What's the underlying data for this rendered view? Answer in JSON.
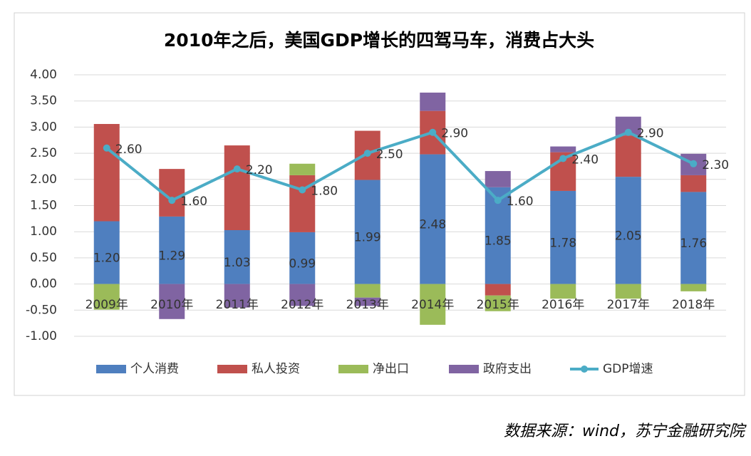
{
  "chart_data": {
    "type": "bar",
    "title": "2010年之后，美国GDP增长的四驾马车，消费占大头",
    "categories": [
      "2009年",
      "2010年",
      "2011年",
      "2012年",
      "2013年",
      "2014年",
      "2015年",
      "2016年",
      "2017年",
      "2018年"
    ],
    "series": [
      {
        "name": "个人消费",
        "type": "bar",
        "color": "#4f7fbf",
        "values": [
          1.2,
          1.29,
          1.03,
          0.99,
          1.99,
          2.48,
          1.85,
          1.78,
          2.05,
          1.76
        ],
        "value_labels": [
          "1.20",
          "1.29",
          "1.03",
          "0.99",
          "1.99",
          "2.48",
          "1.85",
          "1.78",
          "2.05",
          "1.76"
        ]
      },
      {
        "name": "私人投资",
        "type": "bar",
        "color": "#c0504d",
        "values": [
          1.86,
          0.91,
          1.62,
          1.09,
          0.94,
          0.83,
          -0.22,
          0.74,
          0.79,
          0.32
        ]
      },
      {
        "name": "净出口",
        "type": "bar",
        "color": "#9bbb59",
        "values": [
          -0.49,
          0,
          0,
          0.22,
          -0.26,
          -0.78,
          -0.3,
          -0.28,
          -0.28,
          -0.14
        ]
      },
      {
        "name": "政府支出",
        "type": "bar",
        "color": "#8064a2",
        "values": [
          0,
          -0.67,
          -0.45,
          -0.42,
          -0.16,
          0.35,
          0.31,
          0.11,
          0.36,
          0.41
        ]
      },
      {
        "name": "GDP增速",
        "type": "line",
        "color": "#4bacc6",
        "values": [
          2.6,
          1.6,
          2.2,
          1.8,
          2.5,
          2.9,
          1.6,
          2.4,
          2.9,
          2.3
        ],
        "value_labels": [
          "2.60",
          "1.60",
          "2.20",
          "1.80",
          "2.50",
          "2.90",
          "1.60",
          "2.40",
          "2.90",
          "2.30"
        ]
      }
    ],
    "ylim": [
      -1,
      4
    ],
    "yticks": [
      {
        "value": -1,
        "label": "-1.00"
      },
      {
        "value": -0.5,
        "label": "-0.50"
      },
      {
        "value": 0,
        "label": "0.00"
      },
      {
        "value": 0.5,
        "label": "0.50"
      },
      {
        "value": 1,
        "label": "1.00"
      },
      {
        "value": 1.5,
        "label": "1.50"
      },
      {
        "value": 2,
        "label": "2.00"
      },
      {
        "value": 2.5,
        "label": "2.50"
      },
      {
        "value": 3,
        "label": "3.00"
      },
      {
        "value": 3.5,
        "label": "3.50"
      },
      {
        "value": 4,
        "label": "4.00"
      }
    ],
    "grid": true,
    "legend": "bottom",
    "source": "数据来源：wind，苏宁金融研究院"
  }
}
